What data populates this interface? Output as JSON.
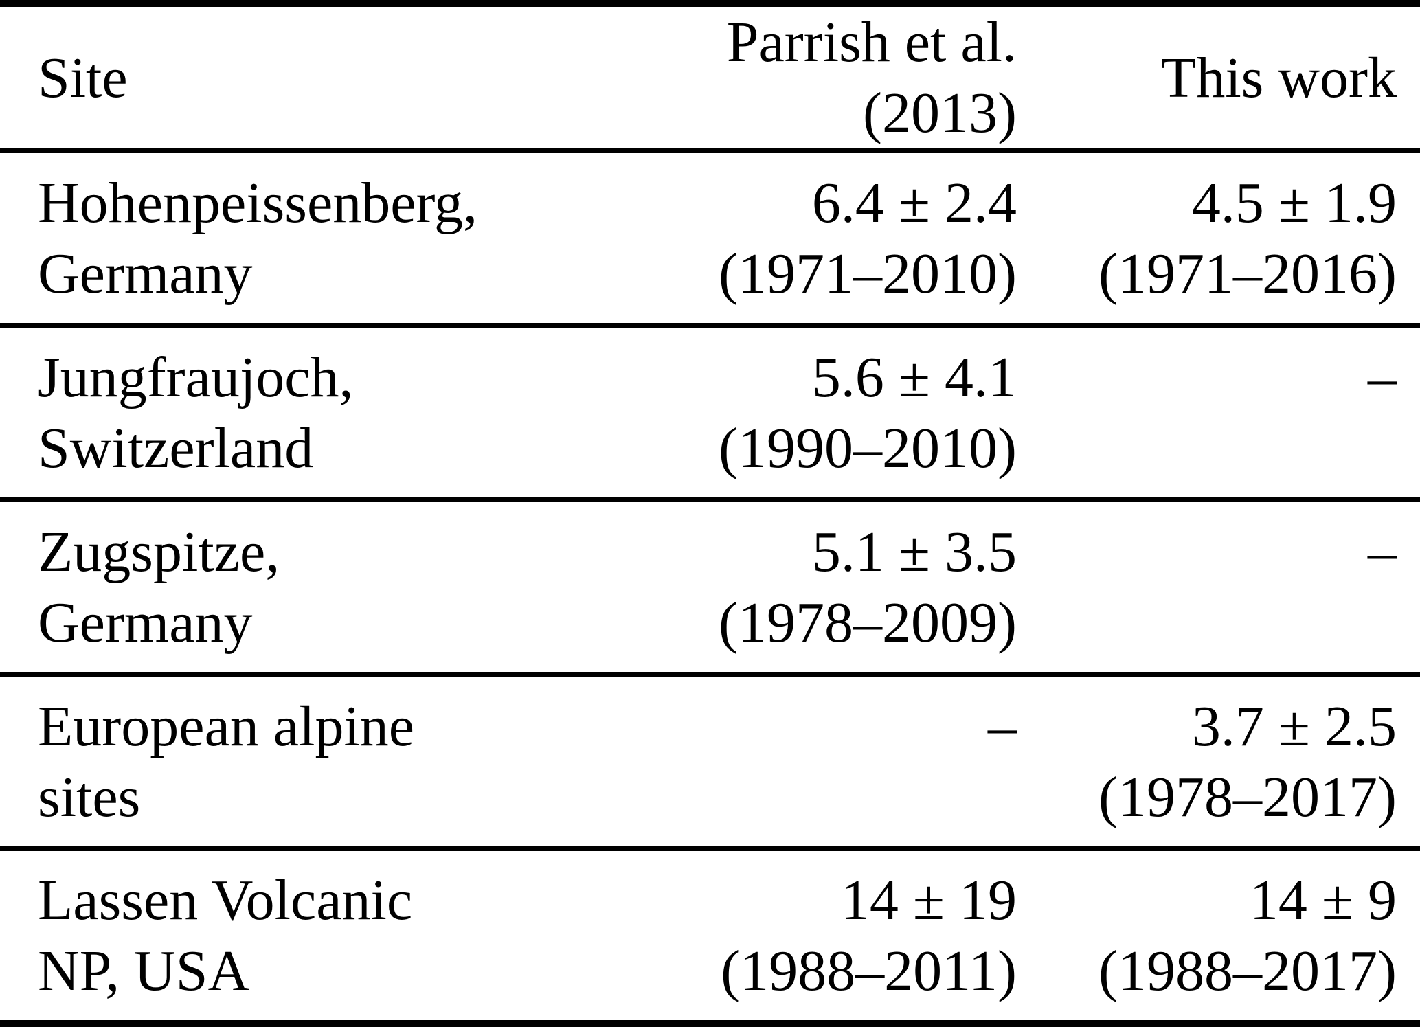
{
  "table": {
    "header": {
      "site": "Site",
      "parrish": "Parrish et al. (2013)",
      "this_work": "This work"
    },
    "rows": [
      {
        "site1": "Hohenpeissenberg,",
        "site2": "Germany",
        "parrish1": "6.4 ± 2.4",
        "parrish2": "(1971–2010)",
        "work1": "4.5 ± 1.9",
        "work2": "(1971–2016)"
      },
      {
        "site1": "Jungfraujoch,",
        "site2": "Switzerland",
        "parrish1": "5.6 ± 4.1",
        "parrish2": "(1990–2010)",
        "work1": "–",
        "work2": ""
      },
      {
        "site1": "Zugspitze,",
        "site2": "Germany",
        "parrish1": "5.1 ± 3.5",
        "parrish2": "(1978–2009)",
        "work1": "–",
        "work2": ""
      },
      {
        "site1": "European alpine",
        "site2": "sites",
        "parrish1": "–",
        "parrish2": "",
        "work1": "3.7 ± 2.5",
        "work2": "(1978–2017)"
      },
      {
        "site1": "Lassen Volcanic",
        "site2": "NP, USA",
        "parrish1": "14 ± 19",
        "parrish2": "(1988–2011)",
        "work1": "14 ± 9",
        "work2": "(1988–2017)"
      }
    ]
  }
}
